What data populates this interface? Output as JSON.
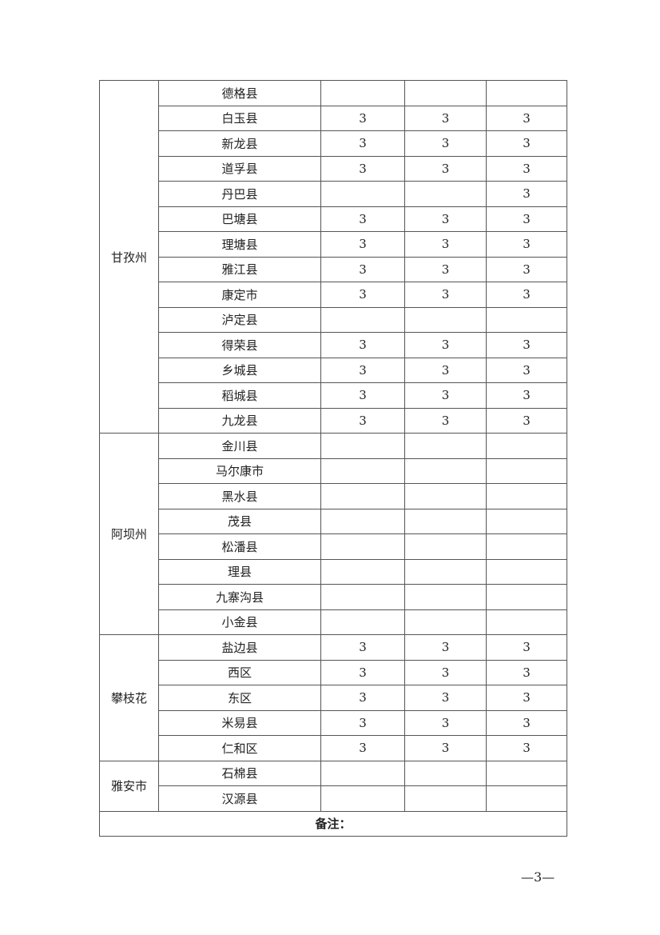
{
  "table": {
    "groups": [
      {
        "name": "甘孜州",
        "rows": [
          {
            "county": "德格县",
            "v": [
              "",
              "",
              ""
            ]
          },
          {
            "county": "白玉县",
            "v": [
              "3",
              "3",
              "3"
            ]
          },
          {
            "county": "新龙县",
            "v": [
              "3",
              "3",
              "3"
            ]
          },
          {
            "county": "道孚县",
            "v": [
              "3",
              "3",
              "3"
            ]
          },
          {
            "county": "丹巴县",
            "v": [
              "",
              "",
              "3"
            ]
          },
          {
            "county": "巴塘县",
            "v": [
              "3",
              "3",
              "3"
            ]
          },
          {
            "county": "理塘县",
            "v": [
              "3",
              "3",
              "3"
            ]
          },
          {
            "county": "雅江县",
            "v": [
              "3",
              "3",
              "3"
            ]
          },
          {
            "county": "康定市",
            "v": [
              "3",
              "3",
              "3"
            ]
          },
          {
            "county": "泸定县",
            "v": [
              "",
              "",
              ""
            ]
          },
          {
            "county": "得荣县",
            "v": [
              "3",
              "3",
              "3"
            ]
          },
          {
            "county": "乡城县",
            "v": [
              "3",
              "3",
              "3"
            ]
          },
          {
            "county": "稻城县",
            "v": [
              "3",
              "3",
              "3"
            ]
          },
          {
            "county": "九龙县",
            "v": [
              "3",
              "3",
              "3"
            ]
          }
        ]
      },
      {
        "name": "阿坝州",
        "rows": [
          {
            "county": "金川县",
            "v": [
              "",
              "",
              ""
            ]
          },
          {
            "county": "马尔康市",
            "v": [
              "",
              "",
              ""
            ]
          },
          {
            "county": "黑水县",
            "v": [
              "",
              "",
              ""
            ]
          },
          {
            "county": "茂县",
            "v": [
              "",
              "",
              ""
            ]
          },
          {
            "county": "松潘县",
            "v": [
              "",
              "",
              ""
            ]
          },
          {
            "county": "理县",
            "v": [
              "",
              "",
              ""
            ]
          },
          {
            "county": "九寨沟县",
            "v": [
              "",
              "",
              ""
            ]
          },
          {
            "county": "小金县",
            "v": [
              "",
              "",
              ""
            ]
          }
        ]
      },
      {
        "name": "攀枝花",
        "rows": [
          {
            "county": "盐边县",
            "v": [
              "3",
              "3",
              "3"
            ]
          },
          {
            "county": "西区",
            "v": [
              "3",
              "3",
              "3"
            ]
          },
          {
            "county": "东区",
            "v": [
              "3",
              "3",
              "3"
            ]
          },
          {
            "county": "米易县",
            "v": [
              "3",
              "3",
              "3"
            ]
          },
          {
            "county": "仁和区",
            "v": [
              "3",
              "3",
              "3"
            ]
          }
        ]
      },
      {
        "name": "雅安市",
        "rows": [
          {
            "county": "石棉县",
            "v": [
              "",
              "",
              ""
            ]
          },
          {
            "county": "汉源县",
            "v": [
              "",
              "",
              ""
            ]
          }
        ]
      }
    ],
    "note_label": "备注："
  },
  "page_number": "—3—"
}
